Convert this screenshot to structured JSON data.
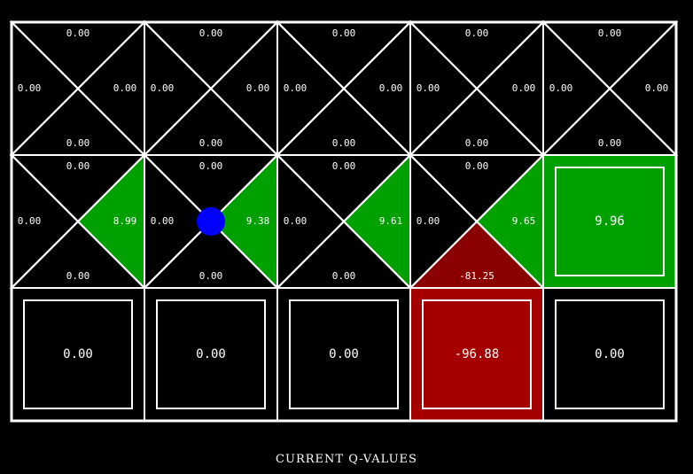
{
  "caption": "CURRENT Q-VALUES",
  "colors": {
    "background": "#000000",
    "line": "#ffffff",
    "agent": "#0000ff",
    "positive_max": "#00a000",
    "negative_tri": "#8b0000",
    "negative_box": "#a40000"
  },
  "grid": {
    "rows": 3,
    "cols": 5,
    "cells": [
      {
        "row": 0,
        "col": 0,
        "kind": "q",
        "north": "0.00",
        "west": "0.00",
        "east": "0.00",
        "south": "0.00"
      },
      {
        "row": 0,
        "col": 1,
        "kind": "q",
        "north": "0.00",
        "west": "0.00",
        "east": "0.00",
        "south": "0.00"
      },
      {
        "row": 0,
        "col": 2,
        "kind": "q",
        "north": "0.00",
        "west": "0.00",
        "east": "0.00",
        "south": "0.00"
      },
      {
        "row": 0,
        "col": 3,
        "kind": "q",
        "north": "0.00",
        "west": "0.00",
        "east": "0.00",
        "south": "0.00"
      },
      {
        "row": 0,
        "col": 4,
        "kind": "q",
        "north": "0.00",
        "west": "0.00",
        "east": "0.00",
        "south": "0.00"
      },
      {
        "row": 1,
        "col": 0,
        "kind": "q",
        "north": "0.00",
        "west": "0.00",
        "east": "8.99",
        "south": "0.00",
        "fills": {
          "east": "positive"
        }
      },
      {
        "row": 1,
        "col": 1,
        "kind": "q",
        "north": "0.00",
        "west": "0.00",
        "east": "9.38",
        "south": "0.00",
        "fills": {
          "east": "positive"
        },
        "agent": true
      },
      {
        "row": 1,
        "col": 2,
        "kind": "q",
        "north": "0.00",
        "west": "0.00",
        "east": "9.61",
        "south": "0.00",
        "fills": {
          "east": "positive"
        }
      },
      {
        "row": 1,
        "col": 3,
        "kind": "q",
        "north": "0.00",
        "west": "0.00",
        "east": "9.65",
        "south": "-81.25",
        "fills": {
          "east": "positive",
          "south": "negative"
        }
      },
      {
        "row": 1,
        "col": 4,
        "kind": "terminal",
        "value": "9.96",
        "fill": "positive"
      },
      {
        "row": 2,
        "col": 0,
        "kind": "terminal",
        "value": "0.00",
        "fill": "none"
      },
      {
        "row": 2,
        "col": 1,
        "kind": "terminal",
        "value": "0.00",
        "fill": "none"
      },
      {
        "row": 2,
        "col": 2,
        "kind": "terminal",
        "value": "0.00",
        "fill": "none"
      },
      {
        "row": 2,
        "col": 3,
        "kind": "terminal",
        "value": "-96.88",
        "fill": "negative"
      },
      {
        "row": 2,
        "col": 4,
        "kind": "terminal",
        "value": "0.00",
        "fill": "none"
      }
    ]
  }
}
